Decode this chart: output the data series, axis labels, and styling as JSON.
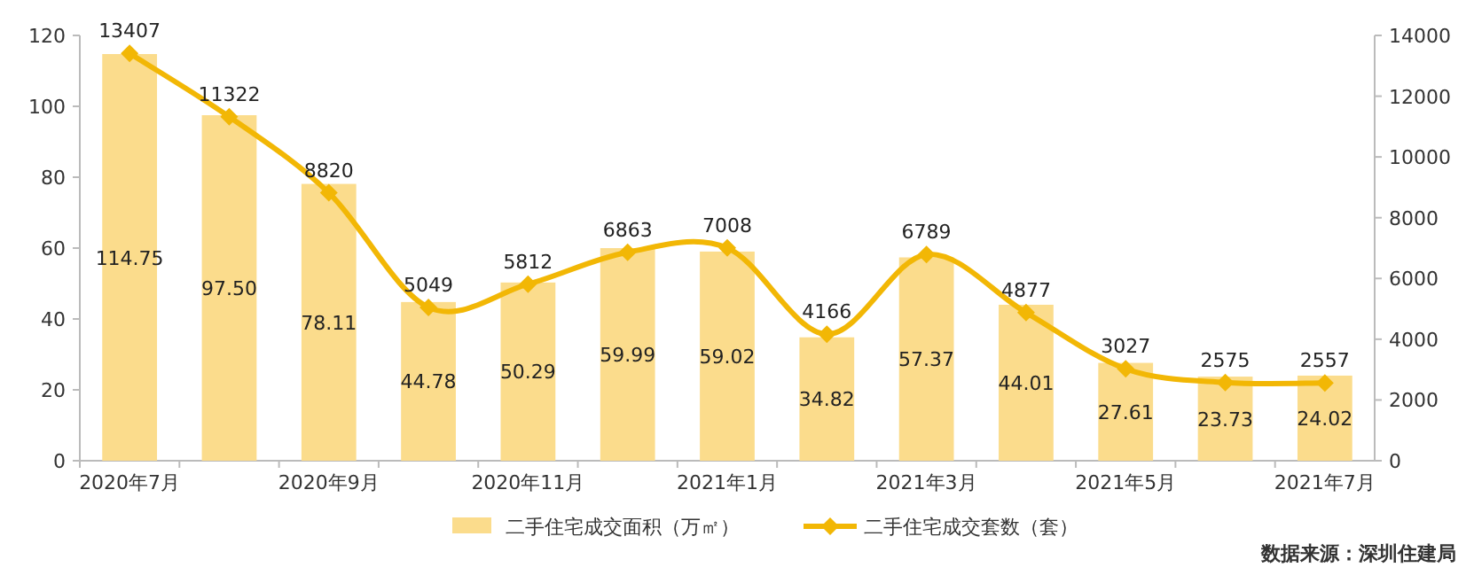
{
  "chart_data": {
    "type": "bar",
    "categories": [
      "2020年7月",
      null,
      "2020年9月",
      null,
      "2020年11月",
      null,
      "2021年1月",
      null,
      "2021年3月",
      null,
      "2021年5月",
      null,
      "2021年7月"
    ],
    "series": [
      {
        "name": "二手住宅成交面积（万㎡）",
        "color": "#fbdc8c",
        "values": [
          114.75,
          97.5,
          78.11,
          44.78,
          50.29,
          59.99,
          59.02,
          34.82,
          57.37,
          44.01,
          27.61,
          23.73,
          24.02
        ],
        "value_labels": [
          "114.75",
          "97.50",
          "78.11",
          "44.78",
          "50.29",
          "59.99",
          "59.02",
          "34.82",
          "57.37",
          "44.01",
          "27.61",
          "23.73",
          "24.02"
        ]
      },
      {
        "name": "二手住宅成交套数（套）",
        "type": "line",
        "axis": "y2",
        "color": "#f2b705",
        "marker": "diamond",
        "values": [
          13407,
          11322,
          8820,
          5049,
          5812,
          6863,
          7008,
          4166,
          6789,
          4877,
          3027,
          2575,
          2557
        ]
      }
    ],
    "ylim": [
      0,
      120
    ],
    "yticks": [
      0,
      20,
      40,
      60,
      80,
      100,
      120
    ],
    "y2lim": [
      0,
      14000
    ],
    "y2ticks": [
      0,
      2000,
      4000,
      6000,
      8000,
      10000,
      12000,
      14000
    ],
    "data_labels": true,
    "legend": "bottom",
    "grid": false,
    "annotations": [
      "数据来源：深圳住建局"
    ]
  }
}
